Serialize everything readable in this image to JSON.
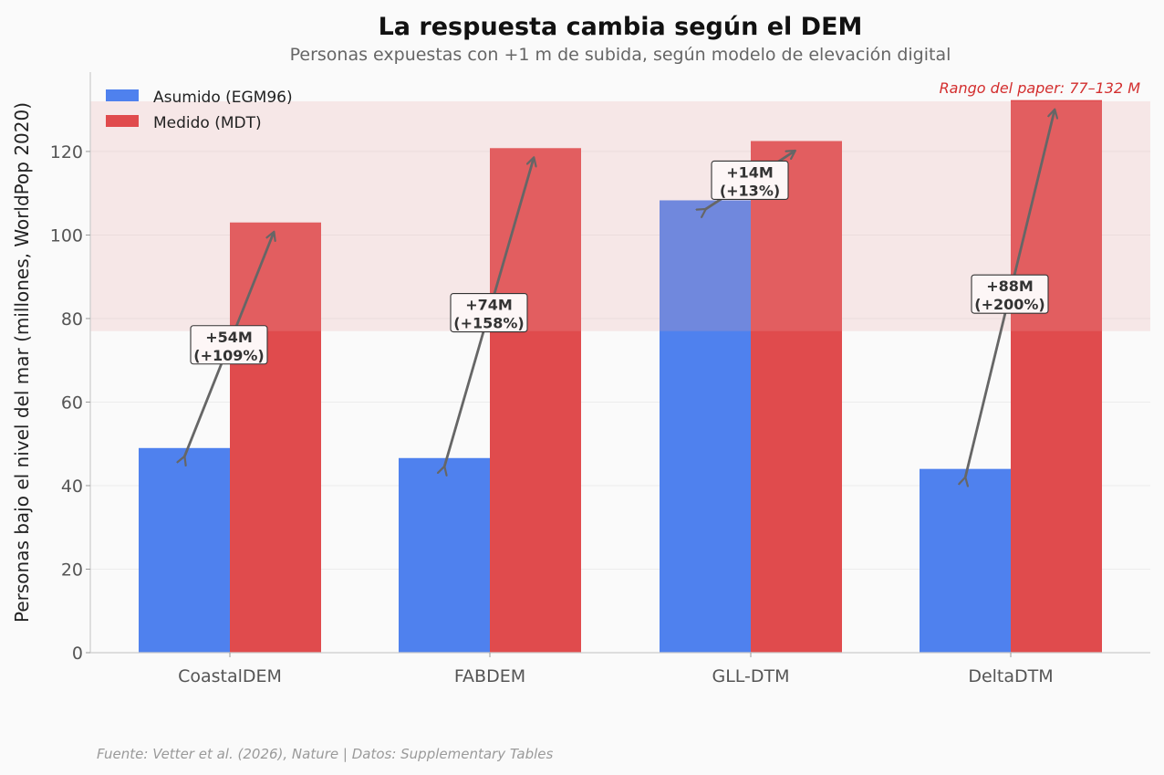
{
  "chart_data": {
    "type": "bar",
    "title": "La respuesta cambia según el DEM",
    "subtitle": "Personas expuestas con +1 m de subida, según modelo de elevación digital",
    "xlabel": "",
    "ylabel": "Personas bajo el nivel del mar (millones, WorldPop 2020)",
    "ylim": [
      0,
      139
    ],
    "yticks": [
      0,
      20,
      40,
      60,
      80,
      100,
      120
    ],
    "grid": true,
    "legend_position": "top-left",
    "categories": [
      "CoastalDEM",
      "FABDEM",
      "GLL-DTM",
      "DeltaDTM"
    ],
    "series": [
      {
        "name": "Asumido (EGM96)",
        "color": "#4f81ee",
        "values": [
          49,
          46.6,
          108.3,
          44
        ]
      },
      {
        "name": "Medido (MDT)",
        "color": "#e04b4d",
        "values": [
          103,
          120.8,
          122.5,
          132.3
        ]
      }
    ],
    "band": {
      "range": [
        77,
        132
      ],
      "label": "Rango del paper: 77–132 M",
      "color": "#f5dcdd"
    },
    "annotations": [
      {
        "line1": "+54M",
        "line2": "(+109%)"
      },
      {
        "line1": "+74M",
        "line2": "(+158%)"
      },
      {
        "line1": "+14M",
        "line2": "(+13%)"
      },
      {
        "line1": "+88M",
        "line2": "(+200%)"
      }
    ],
    "source": "Fuente: Vetter et al. (2026), Nature | Datos: Supplementary Tables"
  }
}
